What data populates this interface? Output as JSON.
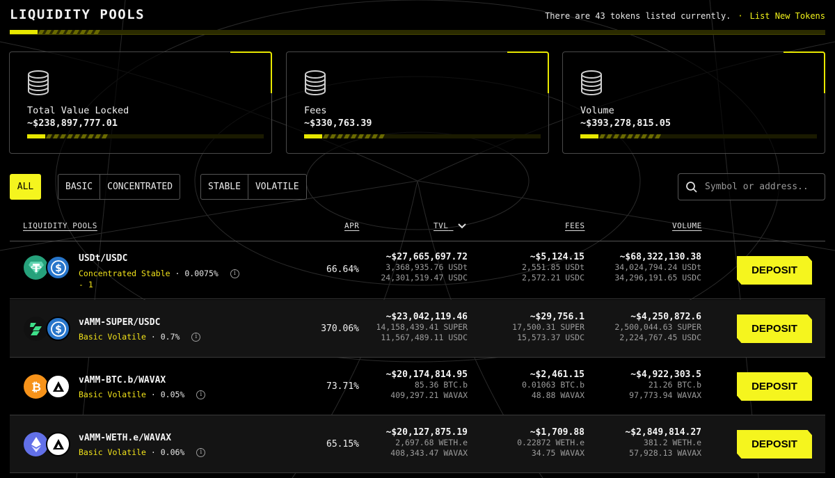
{
  "header": {
    "title": "LIQUIDITY POOLS",
    "info": "There are 43 tokens listed currently.",
    "separator": "·",
    "list_link": "List New Tokens"
  },
  "stats": [
    {
      "label": "Total Value Locked",
      "value": "~$238,897,777.01"
    },
    {
      "label": "Fees",
      "value": "~$330,763.39"
    },
    {
      "label": "Volume",
      "value": "~$393,278,815.05"
    }
  ],
  "filters": {
    "all": "ALL",
    "type": [
      "BASIC",
      "CONCENTRATED"
    ],
    "curve": [
      "STABLE",
      "VOLATILE"
    ]
  },
  "search": {
    "placeholder": "Symbol or address.."
  },
  "table": {
    "headers": {
      "pools": "LIQUIDITY POOLS",
      "apr": "APR",
      "tvl": "TVL",
      "fees": "FEES",
      "volume": "VOLUME"
    },
    "deposit_label": "DEPOSIT",
    "rows": [
      {
        "name": "USDt/USDC",
        "kind": "Concentrated Stable",
        "fee": "0.0075%",
        "extra": "- 1",
        "apr": "66.64%",
        "tvl": {
          "main": "~$27,665,697.72",
          "a": "3,368,935.76 USDt",
          "b": "24,301,519.47 USDC"
        },
        "fees": {
          "main": "~$5,124.15",
          "a": "2,551.85 USDt",
          "b": "2,572.21 USDC"
        },
        "volume": {
          "main": "~$68,322,130.38",
          "a": "34,024,794.24 USDt",
          "b": "34,296,191.65 USDC"
        },
        "icons": [
          "tether-icon",
          "usdc-icon"
        ]
      },
      {
        "name": "vAMM-SUPER/USDC",
        "kind": "Basic Volatile",
        "fee": "0.7%",
        "extra": "",
        "apr": "370.06%",
        "tvl": {
          "main": "~$23,042,119.46",
          "a": "14,158,439.41 SUPER",
          "b": "11,567,489.11 USDC"
        },
        "fees": {
          "main": "~$29,756.1",
          "a": "17,500.31 SUPER",
          "b": "15,573.37 USDC"
        },
        "volume": {
          "main": "~$4,250,872.6",
          "a": "2,500,044.63 SUPER",
          "b": "2,224,767.45 USDC"
        },
        "icons": [
          "super-icon",
          "usdc-icon"
        ]
      },
      {
        "name": "vAMM-BTC.b/WAVAX",
        "kind": "Basic Volatile",
        "fee": "0.05%",
        "extra": "",
        "apr": "73.71%",
        "tvl": {
          "main": "~$20,174,814.95",
          "a": "85.36 BTC.b",
          "b": "409,297.21 WAVAX"
        },
        "fees": {
          "main": "~$2,461.15",
          "a": "0.01063 BTC.b",
          "b": "48.88 WAVAX"
        },
        "volume": {
          "main": "~$4,922,303.5",
          "a": "21.26 BTC.b",
          "b": "97,773.94 WAVAX"
        },
        "icons": [
          "bitcoin-icon",
          "avax-icon"
        ]
      },
      {
        "name": "vAMM-WETH.e/WAVAX",
        "kind": "Basic Volatile",
        "fee": "0.06%",
        "extra": "",
        "apr": "65.15%",
        "tvl": {
          "main": "~$20,127,875.19",
          "a": "2,697.68 WETH.e",
          "b": "408,343.47 WAVAX"
        },
        "fees": {
          "main": "~$1,709.88",
          "a": "0.22872 WETH.e",
          "b": "34.75 WAVAX"
        },
        "volume": {
          "main": "~$2,849,814.27",
          "a": "381.2 WETH.e",
          "b": "57,928.13 WAVAX"
        },
        "icons": [
          "ethereum-icon",
          "avax-icon"
        ]
      }
    ]
  },
  "colors": {
    "accent": "#f5f51e",
    "background": "#000000"
  }
}
